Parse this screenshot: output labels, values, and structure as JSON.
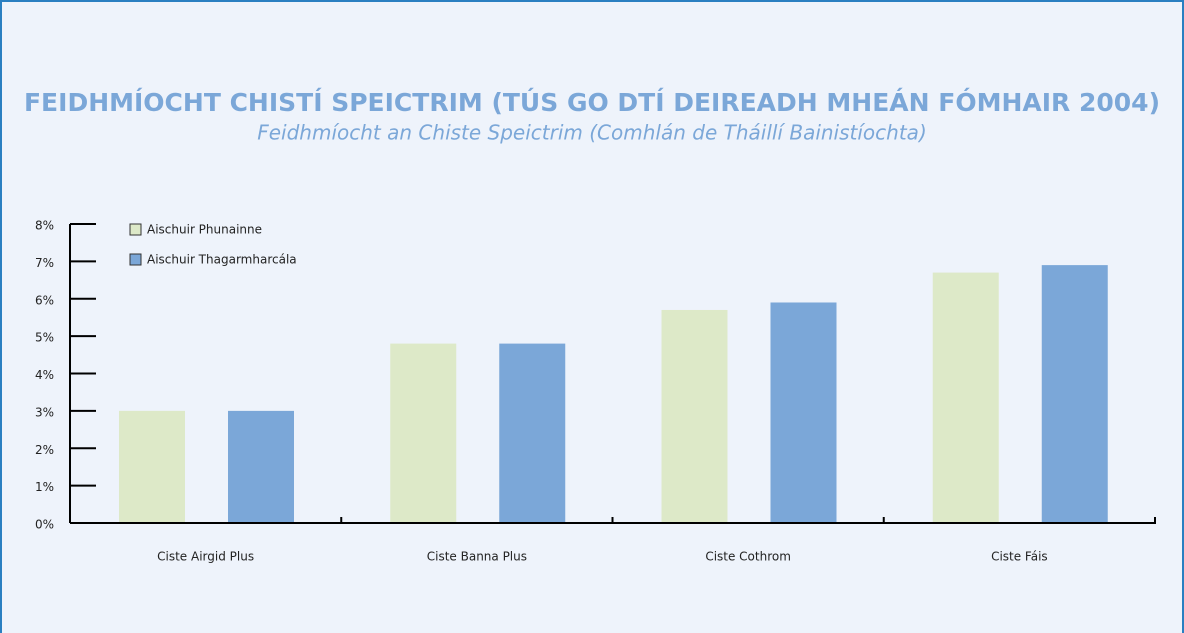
{
  "chart_data": {
    "type": "bar",
    "title": "FEIDHMÍOCHT CHISTÍ SPEICTRIM (TÚS GO DTÍ DEIREADH MHEÁN FÓMHAIR 2004)",
    "subtitle": "Feidhmíocht an Chiste Speictrim (Comhlán de Tháillí Bainistíochta)",
    "categories": [
      "Ciste Airgid Plus",
      "Ciste Banna Plus",
      "Ciste Cothrom",
      "Ciste Fáis"
    ],
    "series": [
      {
        "name": "Aischuir Phunainne",
        "color": "#dde9c8",
        "values": [
          3.0,
          4.8,
          5.7,
          6.7
        ]
      },
      {
        "name": "Aischuir Thagarmharcála",
        "color": "#7ba7d8",
        "values": [
          3.0,
          4.8,
          5.9,
          6.9
        ]
      }
    ],
    "ylim": [
      0,
      8
    ],
    "yticks": [
      {
        "value": 0,
        "label": "0%"
      },
      {
        "value": 1,
        "label": "1%"
      },
      {
        "value": 2,
        "label": "2%"
      },
      {
        "value": 3,
        "label": "3%"
      },
      {
        "value": 4,
        "label": "4%"
      },
      {
        "value": 5,
        "label": "5%"
      },
      {
        "value": 6,
        "label": "6%"
      },
      {
        "value": 7,
        "label": "7%"
      },
      {
        "value": 8,
        "label": "8%"
      }
    ],
    "legend": "top-left"
  }
}
